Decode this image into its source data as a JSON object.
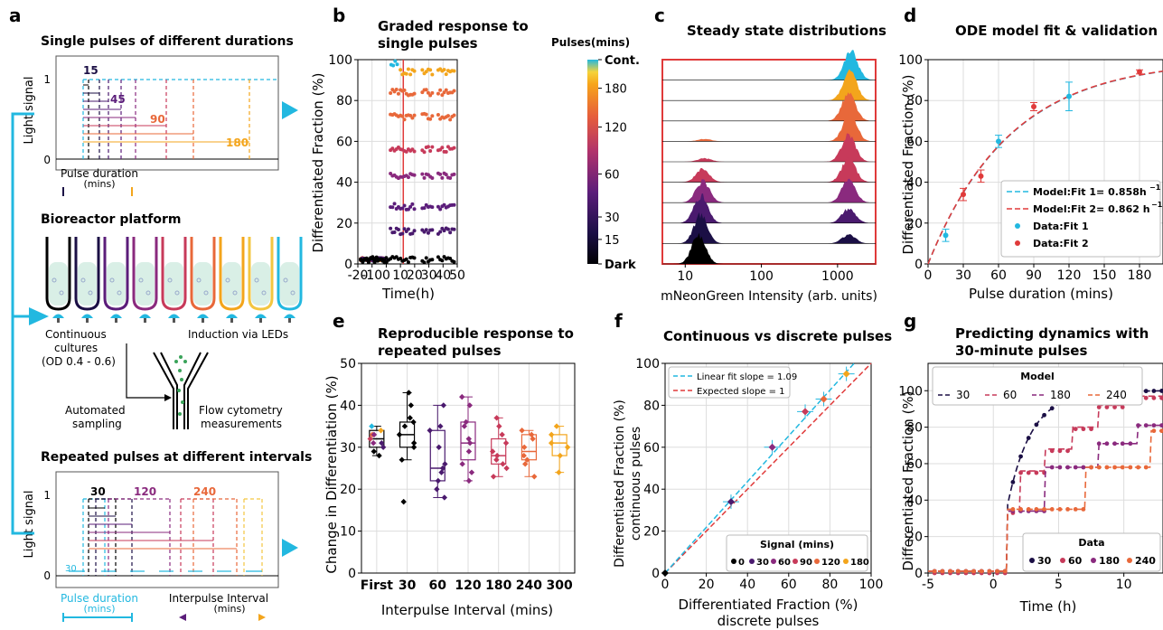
{
  "panel_letters": {
    "a": "a",
    "b": "b",
    "c": "c",
    "d": "d",
    "e": "e",
    "f": "f",
    "g": "g"
  },
  "colors": {
    "cyan": "#22b8e0",
    "dark": "#000000",
    "p15": "#1b0f45",
    "p30": "#4a1a6e",
    "p45": "#5b1d7a",
    "p60": "#8a2a7e",
    "p90": "#c73a5a",
    "p120": "#e8683a",
    "p180": "#f3a51c",
    "red": "#e03a3a"
  },
  "panel_a": {
    "single_title": "Single pulses of different durations",
    "y_label": "Light signal",
    "y_ticks": [
      "1",
      "0"
    ],
    "duration_labels": [
      "15",
      "45",
      "90",
      "180"
    ],
    "pulse_duration_label": "Pulse duration",
    "pulse_duration_unit": "(mins)",
    "bioreactor_title": "Bioreactor platform",
    "continuous_cultures": "Continuous",
    "continuous_cultures2": "cultures",
    "od_range": "(OD 0.4 - 0.6)",
    "induction": "Induction via LEDs",
    "automated": "Automated",
    "sampling": "sampling",
    "flow1": "Flow cytometry",
    "flow2": "measurements",
    "repeated_title": "Repeated pulses at different intervals",
    "interval_labels": [
      "30",
      "120",
      "240"
    ],
    "small_30": "30",
    "interpulse_label": "Interpulse Interval",
    "interpulse_unit": "(mins)"
  },
  "chart_data": [
    {
      "panel": "b",
      "type": "scatter",
      "title": "Graded response to",
      "title2": "single pulses",
      "xlabel": "Time(h)",
      "ylabel": "Differentiated Fraction (%)",
      "xlim": [
        -20,
        50
      ],
      "ylim": [
        0,
        100
      ],
      "xticks": [
        -20,
        -10,
        0,
        10,
        20,
        30,
        40,
        50
      ],
      "xtick_labels": [
        "-20",
        "-10",
        "0",
        "10",
        "20",
        "30",
        "40",
        "50"
      ],
      "yticks": [
        0,
        20,
        40,
        60,
        80,
        100
      ],
      "vline_x": 12,
      "colorbar": {
        "title": "Pulses(mins)",
        "labels": [
          "Cont.",
          "180",
          "120",
          "60",
          "30",
          "15",
          "Dark"
        ],
        "label_positions": [
          100,
          86,
          67,
          44,
          23,
          12,
          0
        ]
      },
      "series": [
        {
          "color_key": "cyan",
          "level": 98,
          "x_start": 3.5,
          "x_end": 8
        },
        {
          "color_key": "p180",
          "level": 94,
          "x_start": 10,
          "x_end": 48
        },
        {
          "color_key": "p120",
          "level": 84,
          "x_start": 3,
          "x_end": 48
        },
        {
          "color_key": "p120",
          "level": 72,
          "x_start": 3,
          "x_end": 48
        },
        {
          "color_key": "p90",
          "level": 56,
          "x_start": 3,
          "x_end": 48
        },
        {
          "color_key": "p60",
          "level": 43,
          "x_start": 3,
          "x_end": 48
        },
        {
          "color_key": "p45",
          "level": 28,
          "x_start": 3,
          "x_end": 48
        },
        {
          "color_key": "p30",
          "level": 16,
          "x_start": 3,
          "x_end": 48
        },
        {
          "color_key": "dark",
          "level": 2,
          "x_start": -18,
          "x_end": 48
        }
      ]
    },
    {
      "panel": "c",
      "type": "area",
      "title": "Steady state distributions",
      "xlabel": "mNeonGreen Intensity (arb. units)",
      "xticks": [
        10,
        100,
        1000
      ],
      "xtick_labels": [
        "10",
        "100",
        "1000"
      ],
      "rows": [
        {
          "color_key": "cyan",
          "peaks": [
            [
              1500,
              1.0
            ]
          ]
        },
        {
          "color_key": "p180",
          "peaks": [
            [
              1450,
              1.0
            ]
          ]
        },
        {
          "color_key": "p120",
          "peaks": [
            [
              1400,
              0.95
            ]
          ]
        },
        {
          "color_key": "p120",
          "peaks": [
            [
              1450,
              0.95
            ],
            [
              18,
              0.08
            ]
          ]
        },
        {
          "color_key": "p90",
          "peaks": [
            [
              1400,
              0.95
            ],
            [
              18,
              0.12
            ]
          ]
        },
        {
          "color_key": "p90",
          "peaks": [
            [
              1400,
              0.85
            ],
            [
              17,
              0.45
            ]
          ]
        },
        {
          "color_key": "p60",
          "peaks": [
            [
              1400,
              0.8
            ],
            [
              17,
              0.75
            ]
          ]
        },
        {
          "color_key": "p30",
          "peaks": [
            [
              1400,
              0.5
            ],
            [
              16,
              0.95
            ]
          ]
        },
        {
          "color_key": "p15",
          "peaks": [
            [
              1400,
              0.3
            ],
            [
              16,
              1.0
            ]
          ]
        },
        {
          "color_key": "dark",
          "peaks": [
            [
              15,
              1.0
            ]
          ]
        }
      ]
    },
    {
      "panel": "d",
      "type": "line",
      "title": "ODE model fit & validation",
      "xlabel": "Pulse duration (mins)",
      "ylabel": "Differentiated Fraction (%)",
      "xlim": [
        0,
        200
      ],
      "ylim": [
        0,
        100
      ],
      "xticks": [
        0,
        30,
        60,
        90,
        120,
        150,
        180
      ],
      "yticks": [
        0,
        20,
        40,
        60,
        80,
        100
      ],
      "model_rate_per_hour": [
        0.858,
        0.862
      ],
      "legend": [
        "Model:Fit 1= 0.858h",
        "Model:Fit 2= 0.862 h",
        "Data:Fit 1",
        "Data:Fit 2"
      ],
      "legend_sup": "−1",
      "fit1_points": [
        {
          "x": 15,
          "y": 14,
          "err": 3
        },
        {
          "x": 60,
          "y": 60,
          "err": 3
        },
        {
          "x": 120,
          "y": 82,
          "err": 7
        }
      ],
      "fit2_points": [
        {
          "x": 30,
          "y": 34,
          "err": 3
        },
        {
          "x": 45,
          "y": 43,
          "err": 3
        },
        {
          "x": 90,
          "y": 77,
          "err": 2
        },
        {
          "x": 180,
          "y": 94,
          "err": 1
        }
      ]
    },
    {
      "panel": "e",
      "type": "scatter",
      "title": "Reproducible response to",
      "title2": "repeated pulses",
      "xlabel": "Interpulse Interval (mins)",
      "ylabel": "Change in Differentiation (%)",
      "ylim": [
        0,
        50
      ],
      "yticks": [
        0,
        10,
        20,
        30,
        40,
        50
      ],
      "categories": [
        "First",
        "30",
        "60",
        "120",
        "180",
        "240",
        "300"
      ],
      "boxes": [
        {
          "color_key": "dark",
          "q1": 30,
          "median": 32,
          "q3": 34,
          "lo": 28,
          "hi": 35,
          "points": [
            28,
            30,
            31,
            32,
            33,
            34,
            35,
            29,
            31,
            33
          ]
        },
        {
          "color_key": "dark",
          "q1": 30,
          "median": 33,
          "q3": 36,
          "lo": 27,
          "hi": 43,
          "points": [
            17,
            27,
            30,
            31,
            33,
            35,
            36,
            37,
            40,
            43
          ]
        },
        {
          "color_key": "p30",
          "q1": 22,
          "median": 25,
          "q3": 34,
          "lo": 18,
          "hi": 40,
          "points": [
            18,
            20,
            22,
            24,
            25,
            26,
            30,
            34,
            35,
            40
          ]
        },
        {
          "color_key": "p60",
          "q1": 27,
          "median": 31,
          "q3": 36,
          "lo": 22,
          "hi": 42,
          "points": [
            22,
            24,
            26,
            29,
            31,
            32,
            35,
            36,
            40,
            42
          ]
        },
        {
          "color_key": "p90",
          "q1": 26,
          "median": 28,
          "q3": 32,
          "lo": 23,
          "hi": 37,
          "points": [
            23,
            25,
            26,
            27,
            28,
            29,
            31,
            33,
            35,
            37
          ]
        },
        {
          "color_key": "p120",
          "q1": 27,
          "median": 29,
          "q3": 33,
          "lo": 23,
          "hi": 34,
          "points": [
            23,
            26,
            27,
            28,
            30,
            32,
            33,
            34
          ]
        },
        {
          "color_key": "p180",
          "q1": 28,
          "median": 31,
          "q3": 33,
          "lo": 24,
          "hi": 35,
          "points": [
            24,
            28,
            30,
            31,
            33,
            35
          ]
        }
      ]
    },
    {
      "panel": "f",
      "type": "scatter",
      "title": "Continuous vs discrete pulses",
      "xlabel": "Differentiated Fraction (%)",
      "xlabel2": "discrete pulses",
      "ylabel": "Differentiated Fraction (%)",
      "ylabel2": "continuous pulses",
      "xlim": [
        0,
        100
      ],
      "ylim": [
        0,
        100
      ],
      "xticks": [
        0,
        20,
        40,
        60,
        80,
        100
      ],
      "yticks": [
        0,
        20,
        40,
        60,
        80,
        100
      ],
      "linear_fit_slope": 1.09,
      "legend": [
        "Linear fit slope = 1.09",
        "Expected slope = 1"
      ],
      "signal_legend_title": "Signal (mins)",
      "signal_labels": [
        "0",
        "30",
        "60",
        "90",
        "120",
        "180"
      ],
      "points": [
        {
          "color_key": "dark",
          "x": 0,
          "y": 0
        },
        {
          "color_key": "p30",
          "x": 32,
          "y": 34
        },
        {
          "color_key": "p60",
          "x": 52,
          "y": 60
        },
        {
          "color_key": "p90",
          "x": 68,
          "y": 77
        },
        {
          "color_key": "p120",
          "x": 77,
          "y": 83
        },
        {
          "color_key": "p180",
          "x": 88,
          "y": 95
        }
      ]
    },
    {
      "panel": "g",
      "type": "line",
      "title": "Predicting dynamics with",
      "title2": "30-minute pulses",
      "xlabel": "Time (h)",
      "ylabel": "Differentiated Fraction (%)",
      "xlim": [
        -5,
        13
      ],
      "ylim": [
        0,
        115
      ],
      "xticks": [
        -5,
        0,
        5,
        10
      ],
      "yticks": [
        0,
        20,
        40,
        60,
        80,
        100
      ],
      "model_legend_title": "Model",
      "data_legend_title": "Data",
      "series_labels": [
        "30",
        "60",
        "180",
        "240"
      ]
    }
  ]
}
